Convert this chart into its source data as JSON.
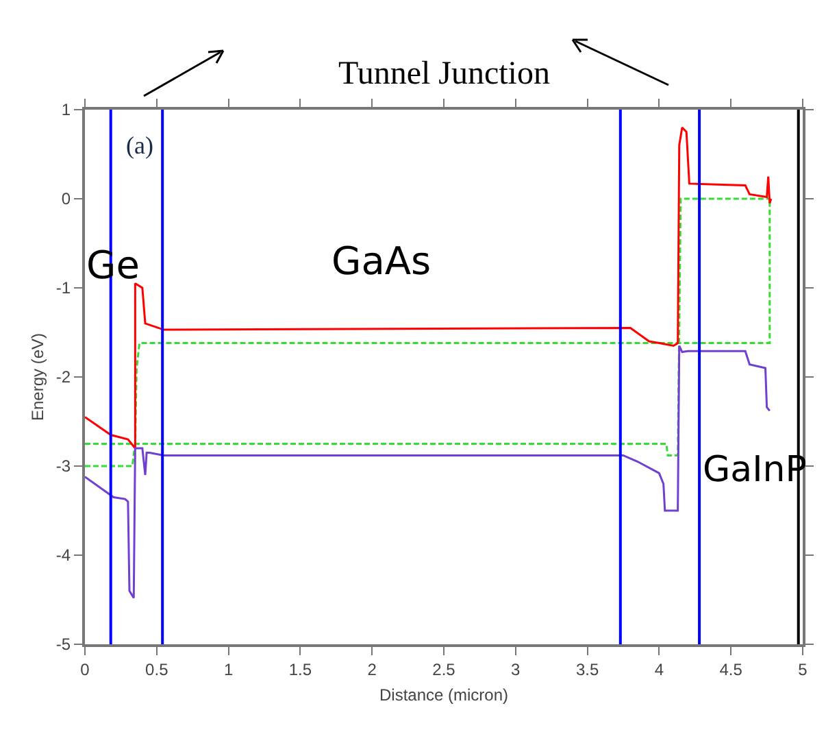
{
  "chart_data": {
    "type": "line",
    "xlabel": "Distance (micron)",
    "ylabel": "Energy (eV)",
    "annotations": [
      "Tunnel Junction",
      "(a)",
      "Ge",
      "GaAs",
      "GaInP"
    ],
    "xlim": [
      0,
      5
    ],
    "xticks": [
      0,
      0.5,
      1,
      1.5,
      2,
      2.5,
      3,
      3.5,
      4,
      4.5,
      5
    ],
    "ylim": [
      -5,
      1
    ],
    "yticks": [
      -5,
      -4,
      -3,
      -2,
      -1,
      0,
      1
    ],
    "grid": false,
    "marker": "none",
    "ref_lines": [
      {
        "axis": "x",
        "value": 0.18,
        "color": "#0000ff"
      },
      {
        "axis": "x",
        "value": 0.54,
        "color": "#0000ff"
      },
      {
        "axis": "x",
        "value": 3.73,
        "color": "#0000ff"
      },
      {
        "axis": "x",
        "value": 4.28,
        "color": "#0000ff"
      },
      {
        "axis": "x",
        "value": 4.97,
        "color": "#000000"
      }
    ],
    "series": [
      {
        "color": "#33dd33",
        "line_style": "dashed",
        "x": [
          0,
          0.33,
          0.35,
          0.36,
          0.38,
          4.77,
          4.77
        ],
        "values": [
          -3.0,
          -3.0,
          -2.75,
          -1.9,
          -1.62,
          -1.62,
          0.0
        ]
      },
      {
        "color": "#33dd33",
        "line_style": "dashed",
        "x": [
          0,
          4.05,
          4.06,
          4.13,
          4.15,
          4.77
        ],
        "values": [
          -2.75,
          -2.75,
          -2.88,
          -2.88,
          0.0,
          0.0
        ]
      },
      {
        "color": "#ff0000",
        "line_style": "solid",
        "x": [
          0,
          0.18,
          0.3,
          0.35,
          0.35,
          0.4,
          0.42,
          0.55,
          3.8,
          3.93,
          4.0,
          4.1,
          4.13,
          4.14,
          4.16,
          4.19,
          4.21,
          4.6,
          4.63,
          4.75,
          4.76,
          4.77,
          4.78
        ],
        "values": [
          -2.45,
          -2.65,
          -2.7,
          -2.8,
          -0.95,
          -1.0,
          -1.4,
          -1.47,
          -1.45,
          -1.6,
          -1.62,
          -1.65,
          -1.62,
          0.6,
          0.8,
          0.75,
          0.17,
          0.15,
          0.05,
          0.02,
          0.25,
          -0.05,
          0.0
        ]
      },
      {
        "color": "#7040d0",
        "line_style": "solid",
        "x": [
          0,
          0.2,
          0.28,
          0.3,
          0.31,
          0.34,
          0.35,
          0.4,
          0.42,
          0.43,
          0.45,
          0.55,
          3.75,
          3.85,
          4.0,
          4.03,
          4.04,
          4.13,
          4.14,
          4.16,
          4.2,
          4.6,
          4.63,
          4.74,
          4.75,
          4.77
        ],
        "values": [
          -3.12,
          -3.35,
          -3.37,
          -3.4,
          -4.4,
          -4.48,
          -2.8,
          -2.8,
          -3.1,
          -2.85,
          -2.85,
          -2.88,
          -2.88,
          -2.95,
          -3.08,
          -3.2,
          -3.5,
          -3.5,
          -1.65,
          -1.72,
          -1.71,
          -1.71,
          -1.86,
          -1.9,
          -2.34,
          -2.38
        ]
      }
    ]
  }
}
